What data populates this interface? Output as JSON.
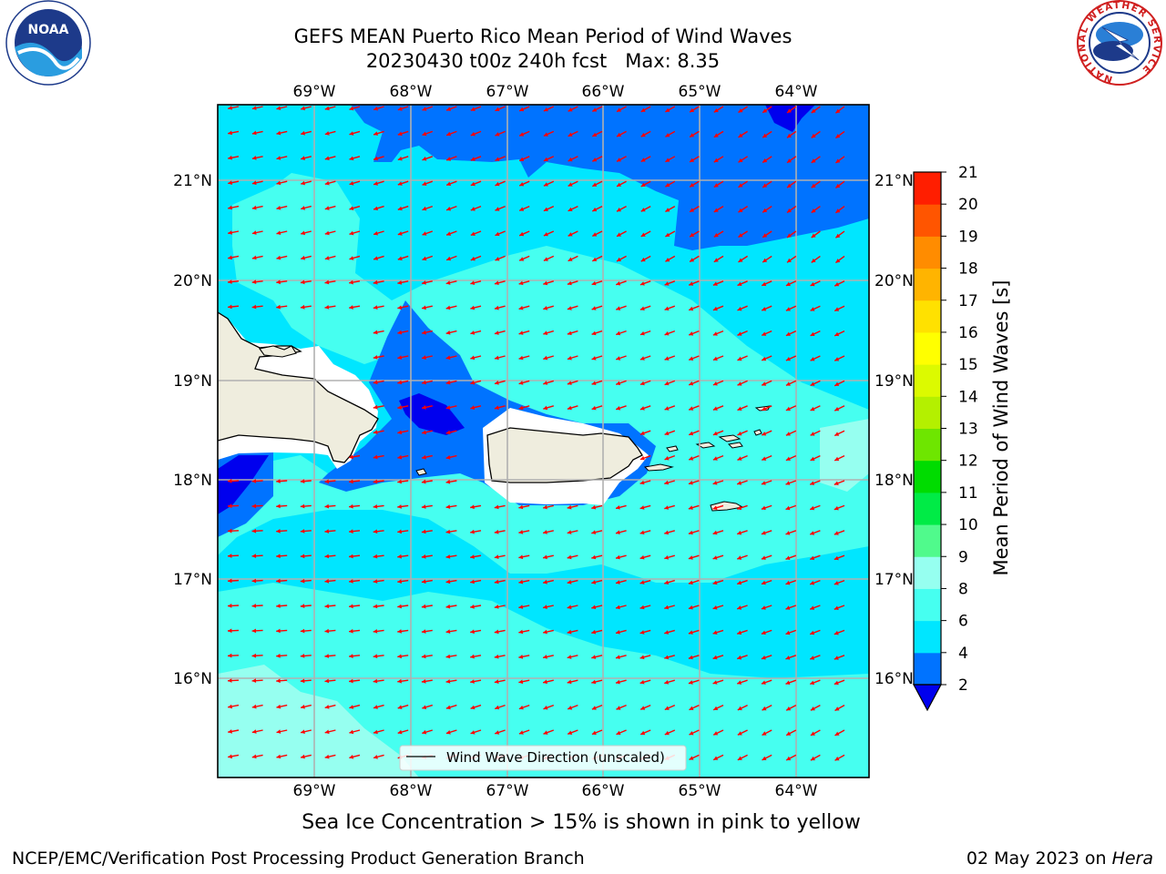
{
  "title_line1": "GEFS MEAN Puerto Rico Mean Period of Wind Waves",
  "title_line2": "20230430 t00z 240h fcst   Max: 8.35",
  "subtitle": "Sea Ice Concentration > 15% is shown in pink to yellow",
  "credit": "NCEP/EMC/Verification Post Processing Product Generation Branch",
  "date_prefix": "02 May 2023 on ",
  "date_host": "Hera",
  "logos": {
    "noaa": {
      "name": "NOAA"
    },
    "nws": {
      "ring_text": "NATIONAL WEATHER SERVICE"
    }
  },
  "map": {
    "lon_labels": [
      "69°W",
      "68°W",
      "67°W",
      "66°W",
      "65°W",
      "64°W"
    ],
    "lat_labels": [
      "21°N",
      "20°N",
      "19°N",
      "18°N",
      "17°N",
      "16°N"
    ],
    "legend_label": "Wind Wave Direction (unscaled)",
    "arrow_color": "#ff0000",
    "land_color": "#efedde"
  },
  "colorbar": {
    "label": "Mean Period of Wind Waves [s]",
    "ticks": [
      "2",
      "4",
      "6",
      "8",
      "9",
      "10",
      "11",
      "12",
      "13",
      "14",
      "15",
      "16",
      "17",
      "18",
      "19",
      "20",
      "21"
    ],
    "colors": [
      "#0073ff",
      "#00e6ff",
      "#46fff0",
      "#96fff0",
      "#50fa8c",
      "#00eb46",
      "#00dc00",
      "#6ee600",
      "#b4f000",
      "#dcfa00",
      "#ffff00",
      "#ffe100",
      "#ffb400",
      "#ff8c00",
      "#ff5500",
      "#ff1e00"
    ],
    "under_color": "#0000ee"
  }
}
